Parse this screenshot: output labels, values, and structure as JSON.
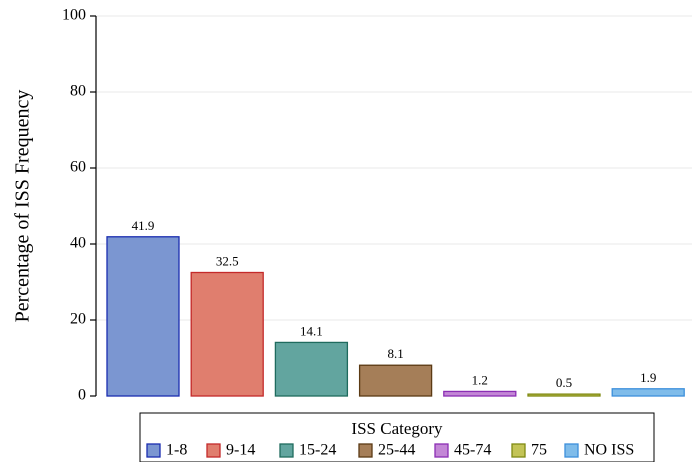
{
  "chart_data": {
    "type": "bar",
    "ylabel": "Percentage of ISS Frequency",
    "xlabel": "",
    "ylim": [
      0,
      100
    ],
    "yticks": [
      0,
      20,
      40,
      60,
      80,
      100
    ],
    "grid": true,
    "legend": {
      "title": "ISS Category",
      "placement": "bottom"
    },
    "categories": [
      "1-8",
      "9-14",
      "15-24",
      "25-44",
      "45-74",
      "75",
      "NO ISS"
    ],
    "values": [
      41.9,
      32.5,
      14.1,
      8.1,
      1.2,
      0.5,
      1.9
    ],
    "data_labels": [
      "41.9",
      "32.5",
      "14.1",
      "8.1",
      "1.2",
      "0.5",
      "1.9"
    ],
    "colors": [
      {
        "fill": "#7b96d1",
        "stroke": "#1a2db0"
      },
      {
        "fill": "#e07e6e",
        "stroke": "#c42a2a"
      },
      {
        "fill": "#62a59f",
        "stroke": "#1f6b5e"
      },
      {
        "fill": "#a57e58",
        "stroke": "#5b3a14"
      },
      {
        "fill": "#c387d6",
        "stroke": "#8b2eb4"
      },
      {
        "fill": "#c3c456",
        "stroke": "#7f8a12"
      },
      {
        "fill": "#7fbcea",
        "stroke": "#3c8fdb"
      }
    ]
  }
}
